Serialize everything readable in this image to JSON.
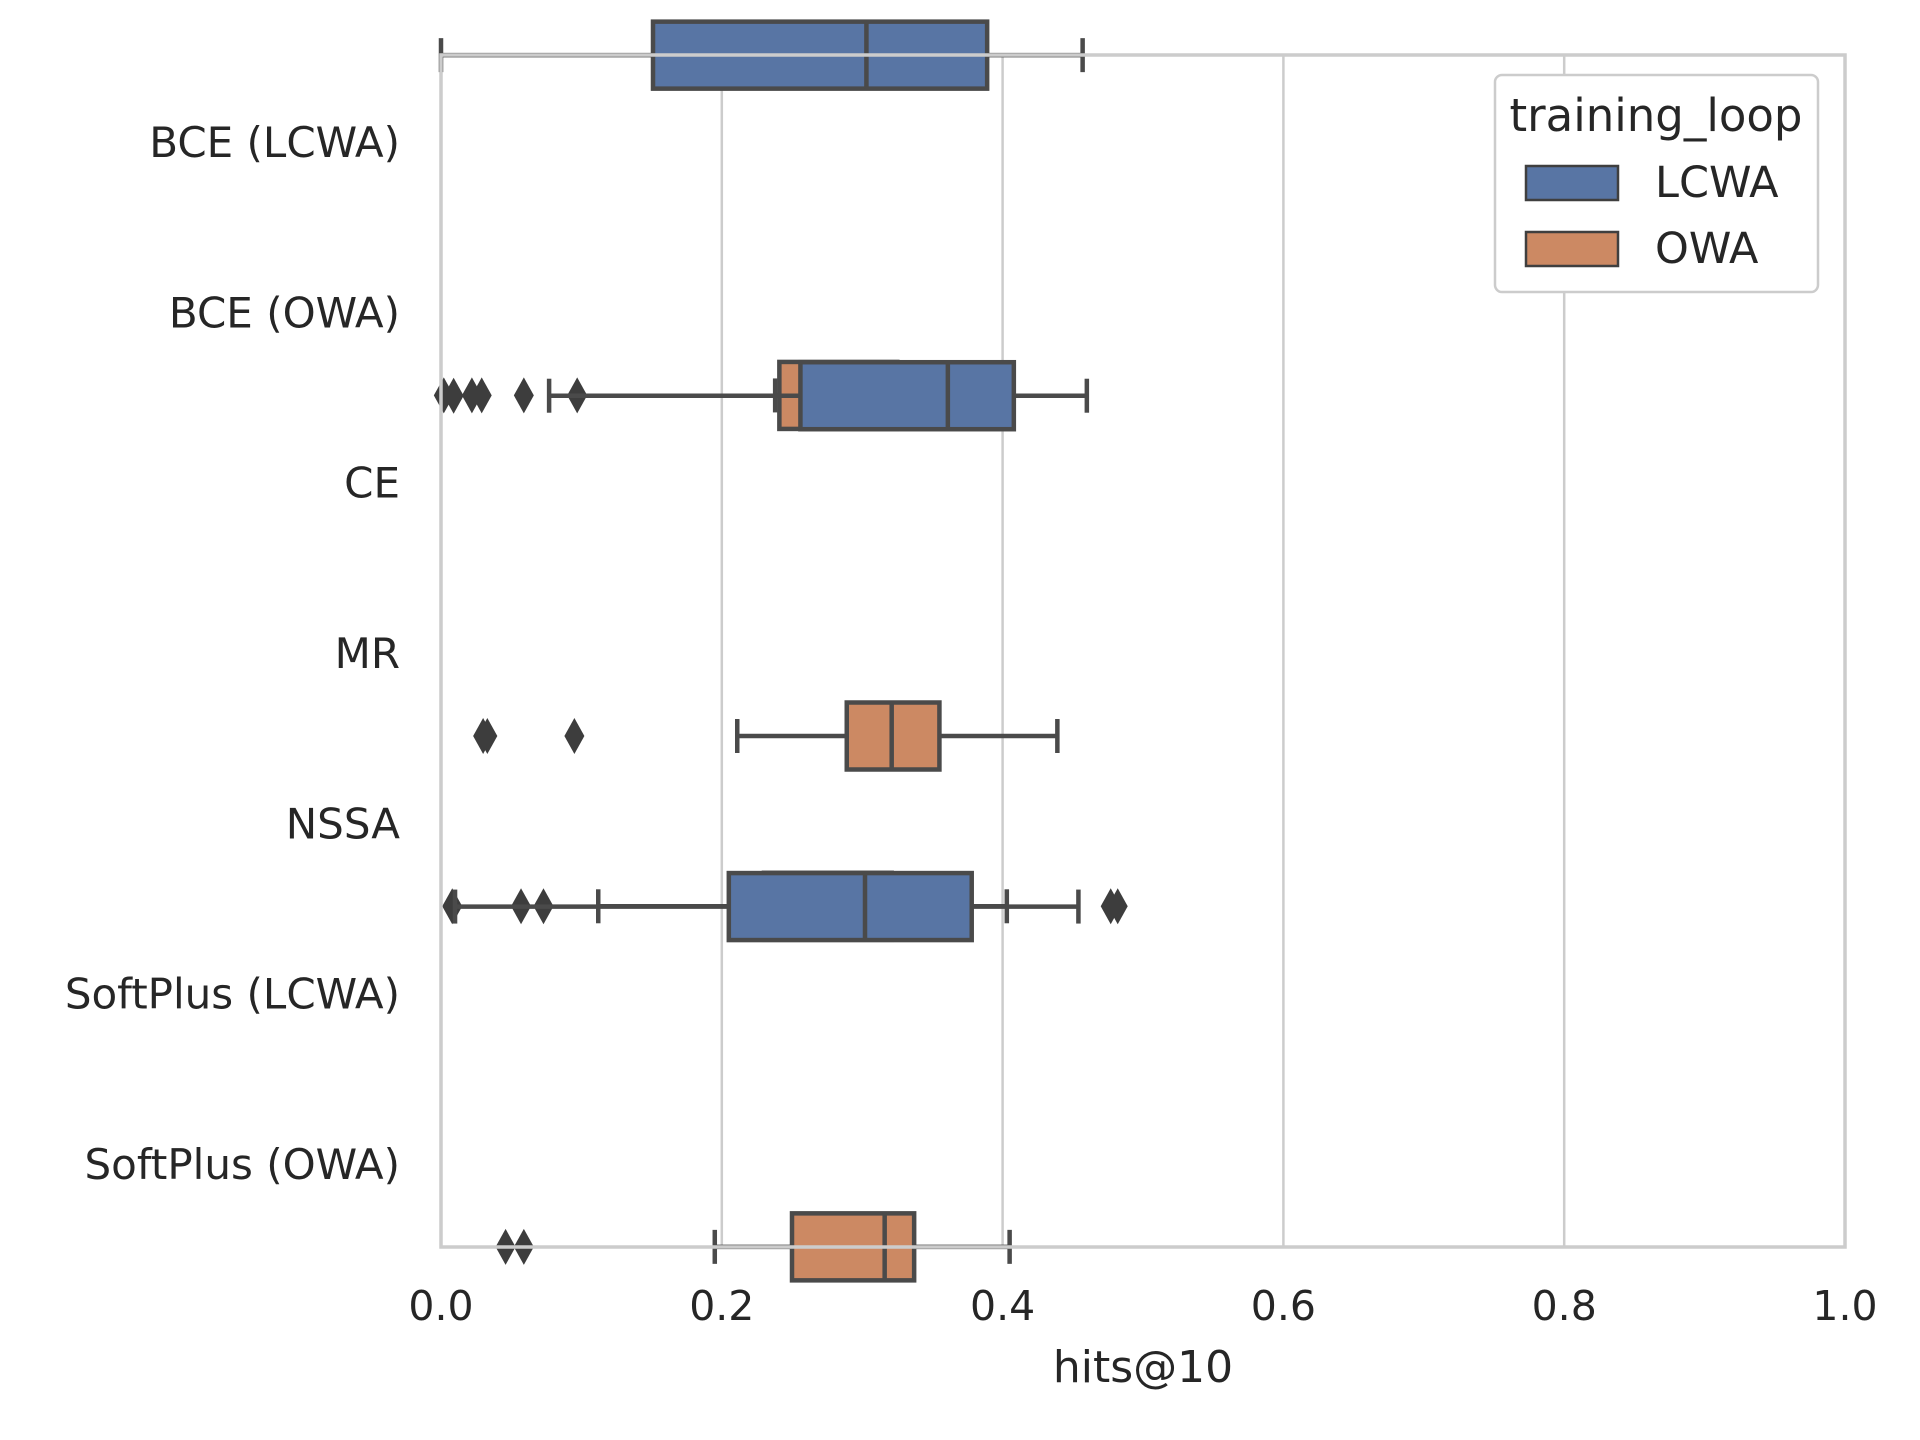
{
  "chart_data": {
    "type": "boxplot",
    "orientation": "horizontal",
    "xlabel": "hits@10",
    "ylabel": "",
    "xlim": [
      0.0,
      1.0
    ],
    "xticks": [
      "0.0",
      "0.2",
      "0.4",
      "0.6",
      "0.8",
      "1.0"
    ],
    "grid": "vertical",
    "colors": {
      "LCWA": "#5875a4",
      "OWA": "#cc8963"
    },
    "legend": {
      "title": "training_loop",
      "placement": "top-right",
      "entries": [
        {
          "label": "LCWA",
          "color": "#5875a4"
        },
        {
          "label": "OWA",
          "color": "#cc8963"
        }
      ]
    },
    "categories": [
      "BCE (LCWA)",
      "BCE (OWA)",
      "CE",
      "MR",
      "NSSA",
      "SoftPlus (LCWA)",
      "SoftPlus (OWA)"
    ],
    "boxes": [
      {
        "category": "BCE (LCWA)",
        "loop": "LCWA",
        "whislo": 0.0,
        "q1": 0.151,
        "med": 0.303,
        "q3": 0.389,
        "whishi": 0.457,
        "fliers": []
      },
      {
        "category": "BCE (OWA)",
        "loop": "OWA",
        "whislo": 0.238,
        "q1": 0.241,
        "med": 0.282,
        "q3": 0.325,
        "whishi": 0.358,
        "fliers": [
          0.002,
          0.022,
          0.029,
          0.059,
          0.097
        ]
      },
      {
        "category": "CE",
        "loop": "LCWA",
        "whislo": 0.077,
        "q1": 0.256,
        "med": 0.361,
        "q3": 0.408,
        "whishi": 0.46,
        "fliers": [
          0.009
        ]
      },
      {
        "category": "MR",
        "loop": "OWA",
        "whislo": 0.211,
        "q1": 0.289,
        "med": 0.321,
        "q3": 0.355,
        "whishi": 0.439,
        "fliers": [
          0.03,
          0.033,
          0.095
        ]
      },
      {
        "category": "NSSA",
        "loop": "OWA",
        "whislo": 0.112,
        "q1": 0.23,
        "med": 0.281,
        "q3": 0.321,
        "whishi": 0.403,
        "fliers": [
          0.008,
          0.057,
          0.073,
          0.477,
          0.482
        ]
      },
      {
        "category": "SoftPlus (LCWA)",
        "loop": "LCWA",
        "whislo": 0.01,
        "q1": 0.205,
        "med": 0.302,
        "q3": 0.378,
        "whishi": 0.454,
        "fliers": []
      },
      {
        "category": "SoftPlus (OWA)",
        "loop": "OWA",
        "whislo": 0.195,
        "q1": 0.25,
        "med": 0.316,
        "q3": 0.337,
        "whishi": 0.405,
        "fliers": [
          0.046,
          0.059
        ]
      }
    ]
  }
}
